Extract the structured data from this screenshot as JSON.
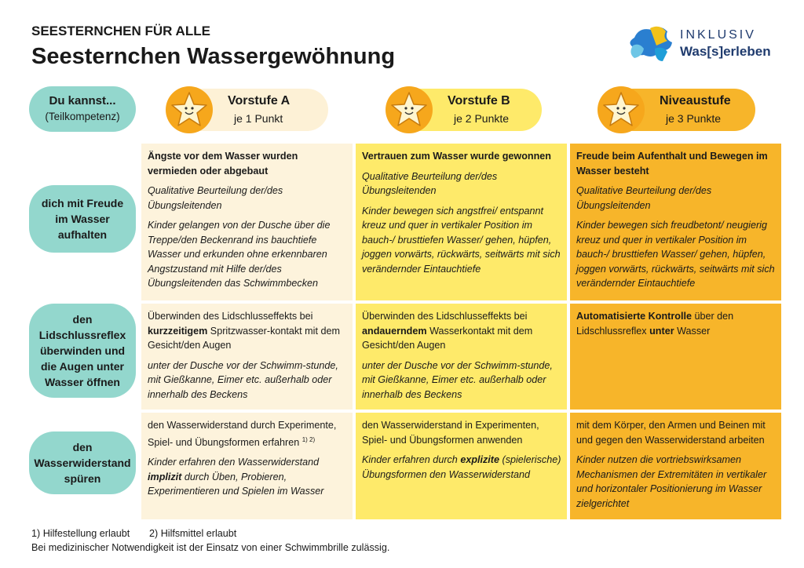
{
  "header": {
    "kicker": "SEESTERNCHEN FÜR ALLE",
    "title": "Seesternchen Wassergewöhnung"
  },
  "logo": {
    "line1": "INKLUSIV",
    "line2": "Was[s]erleben"
  },
  "corner": {
    "title": "Du kannst...",
    "subtitle": "(Teilkompetenz)"
  },
  "levels": [
    {
      "title": "Vorstufe A",
      "points": "je 1 Punkt"
    },
    {
      "title": "Vorstufe B",
      "points": "je 2 Punkte"
    },
    {
      "title": "Niveaustufe",
      "points": "je 3 Punkte"
    }
  ],
  "rows": [
    {
      "label": "dich mit Freude im Wasser aufhalten",
      "cells": [
        [
          {
            "style": "bold",
            "runs": [
              "Ängste vor dem Wasser wurden vermieden oder abgebaut"
            ]
          },
          {
            "style": "italic",
            "runs": [
              "Qualitative Beurteilung der/des Übungsleitenden"
            ]
          },
          {
            "style": "italic",
            "runs": [
              "Kinder gelangen von der Dusche über die Treppe/den Beckenrand ins bauchtiefe Wasser und erkunden ohne erkennbaren Angstzustand mit Hilfe der/des Übungsleitenden das Schwimmbecken"
            ]
          }
        ],
        [
          {
            "style": "bold",
            "runs": [
              "Vertrauen zum Wasser wurde gewonnen"
            ]
          },
          {
            "style": "italic",
            "runs": [
              "Qualitative Beurteilung der/des Übungsleitenden"
            ]
          },
          {
            "style": "italic",
            "runs": [
              "Kinder bewegen sich angstfrei/ entspannt kreuz und quer in vertikaler Position im bauch-/ brusttiefen Wasser/ gehen, hüpfen, joggen vorwärts, rückwärts, seitwärts mit sich verändernder Eintauchtiefe"
            ]
          }
        ],
        [
          {
            "style": "bold",
            "runs": [
              "Freude beim Aufenthalt und Bewegen im Wasser besteht"
            ]
          },
          {
            "style": "italic",
            "runs": [
              "Qualitative Beurteilung der/des Übungsleitenden"
            ]
          },
          {
            "style": "italic",
            "runs": [
              "Kinder bewegen sich freudbetont/ neugierig kreuz und quer in vertikaler Position im bauch-/ brusttiefen Wasser/ gehen, hüpfen, joggen vorwärts, rückwärts, seitwärts mit sich verändernder Eintauchtiefe"
            ]
          }
        ]
      ]
    },
    {
      "label": "den Lidschlussreflex überwinden und die Augen unter Wasser öffnen",
      "cells": [
        [
          {
            "style": "normal",
            "runs": [
              "Überwinden des Lidschlusseffekts bei ",
              {
                "text": "kurzzeitigem",
                "bold": true
              },
              " Spritzwasser-kontakt mit dem Gesicht/den Augen"
            ]
          },
          {
            "style": "italic",
            "runs": [
              "unter der Dusche vor der Schwimm-stunde, mit Gießkanne, Eimer etc. außerhalb oder innerhalb des Beckens"
            ]
          }
        ],
        [
          {
            "style": "normal",
            "runs": [
              "Überwinden des Lidschlusseffekts bei ",
              {
                "text": "andauerndem",
                "bold": true
              },
              " Wasserkontakt mit dem Gesicht/den Augen"
            ]
          },
          {
            "style": "italic",
            "runs": [
              "unter der Dusche vor der Schwimm-stunde, mit Gießkanne, Eimer etc. außerhalb oder innerhalb des Beckens"
            ]
          }
        ],
        [
          {
            "style": "normal",
            "runs": [
              {
                "text": "Automatisierte Kontrolle",
                "bold": true
              },
              " über den Lidschlussreflex ",
              {
                "text": "unter",
                "bold": true
              },
              " Wasser"
            ]
          }
        ]
      ]
    },
    {
      "label": "den Wasserwiderstand spüren",
      "cells": [
        [
          {
            "style": "normal",
            "runs": [
              "den Wasserwiderstand durch Experimente, Spiel- und Übungsformen erfahren ",
              {
                "text": "1) 2)",
                "sup": true
              }
            ]
          },
          {
            "style": "italic",
            "runs": [
              "Kinder erfahren den Wasserwiderstand ",
              {
                "text": "implizit",
                "bold": true
              },
              " durch Üben, Probieren, Experimentieren und Spielen im Wasser"
            ]
          }
        ],
        [
          {
            "style": "normal",
            "runs": [
              "den Wasserwiderstand in Experimenten, Spiel- und Übungsformen anwenden"
            ]
          },
          {
            "style": "italic",
            "runs": [
              "Kinder erfahren durch ",
              {
                "text": "explizite",
                "bold": true
              },
              " (spielerische) Übungsformen den Wasserwiderstand"
            ]
          }
        ],
        [
          {
            "style": "normal",
            "runs": [
              "mit dem Körper, den Armen und Beinen mit und gegen den Wasserwiderstand arbeiten"
            ]
          },
          {
            "style": "italic",
            "runs": [
              "Kinder nutzen die vortriebswirksamen Mechanismen der Extremitäten in vertikaler und horizontaler Positionierung im Wasser zielgerichtet"
            ]
          }
        ]
      ]
    }
  ],
  "footnotes": [
    "1) Hilfestellung erlaubt",
    "2) Hilfsmittel erlaubt",
    "Bei medizinischer Notwendigkeit ist der Einsatz von einer Schwimmbrille zulässig."
  ]
}
